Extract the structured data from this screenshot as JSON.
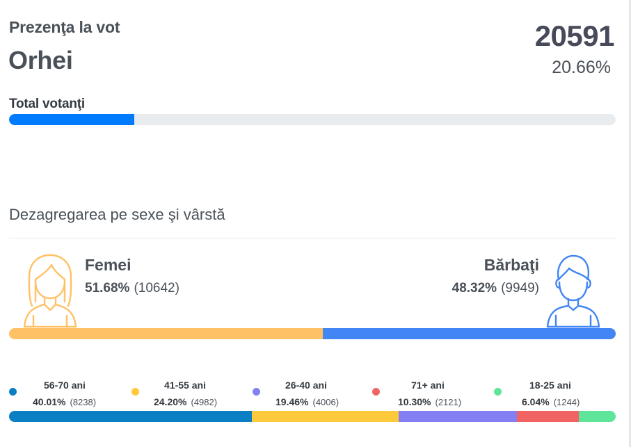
{
  "header": {
    "title": "Prezenţa la vot",
    "location": "Orhei",
    "total_count": "20591",
    "total_percent": "20.66%"
  },
  "turnout": {
    "label": "Total votanţi",
    "fraction": 0.2066,
    "color": "#007bff"
  },
  "breakdown": {
    "title": "Dezagregarea pe sexe şi vârstă"
  },
  "gender": {
    "female": {
      "label": "Femei",
      "percent": "51.68%",
      "count": "(10642)",
      "value": 51.68,
      "color": "#ffc165",
      "icon": "female-icon"
    },
    "male": {
      "label": "Bărbaţi",
      "percent": "48.32%",
      "count": "(9949)",
      "value": 48.32,
      "color": "#4285f4",
      "icon": "male-icon"
    }
  },
  "age_groups": [
    {
      "name": "56-70 ani",
      "percent": "40.01%",
      "count": "(8238)",
      "value": 40.01,
      "color": "#0a7fc4"
    },
    {
      "name": "41-55 ani",
      "percent": "24.20%",
      "count": "(4982)",
      "value": 24.2,
      "color": "#ffc93c"
    },
    {
      "name": "26-40 ani",
      "percent": "19.46%",
      "count": "(4006)",
      "value": 19.46,
      "color": "#8480f4"
    },
    {
      "name": "71+ ani",
      "percent": "10.30%",
      "count": "(2121)",
      "value": 10.3,
      "color": "#f26464"
    },
    {
      "name": "18-25 ani",
      "percent": "6.04%",
      "count": "(1244)",
      "value": 6.04,
      "color": "#5ee59a"
    }
  ]
}
